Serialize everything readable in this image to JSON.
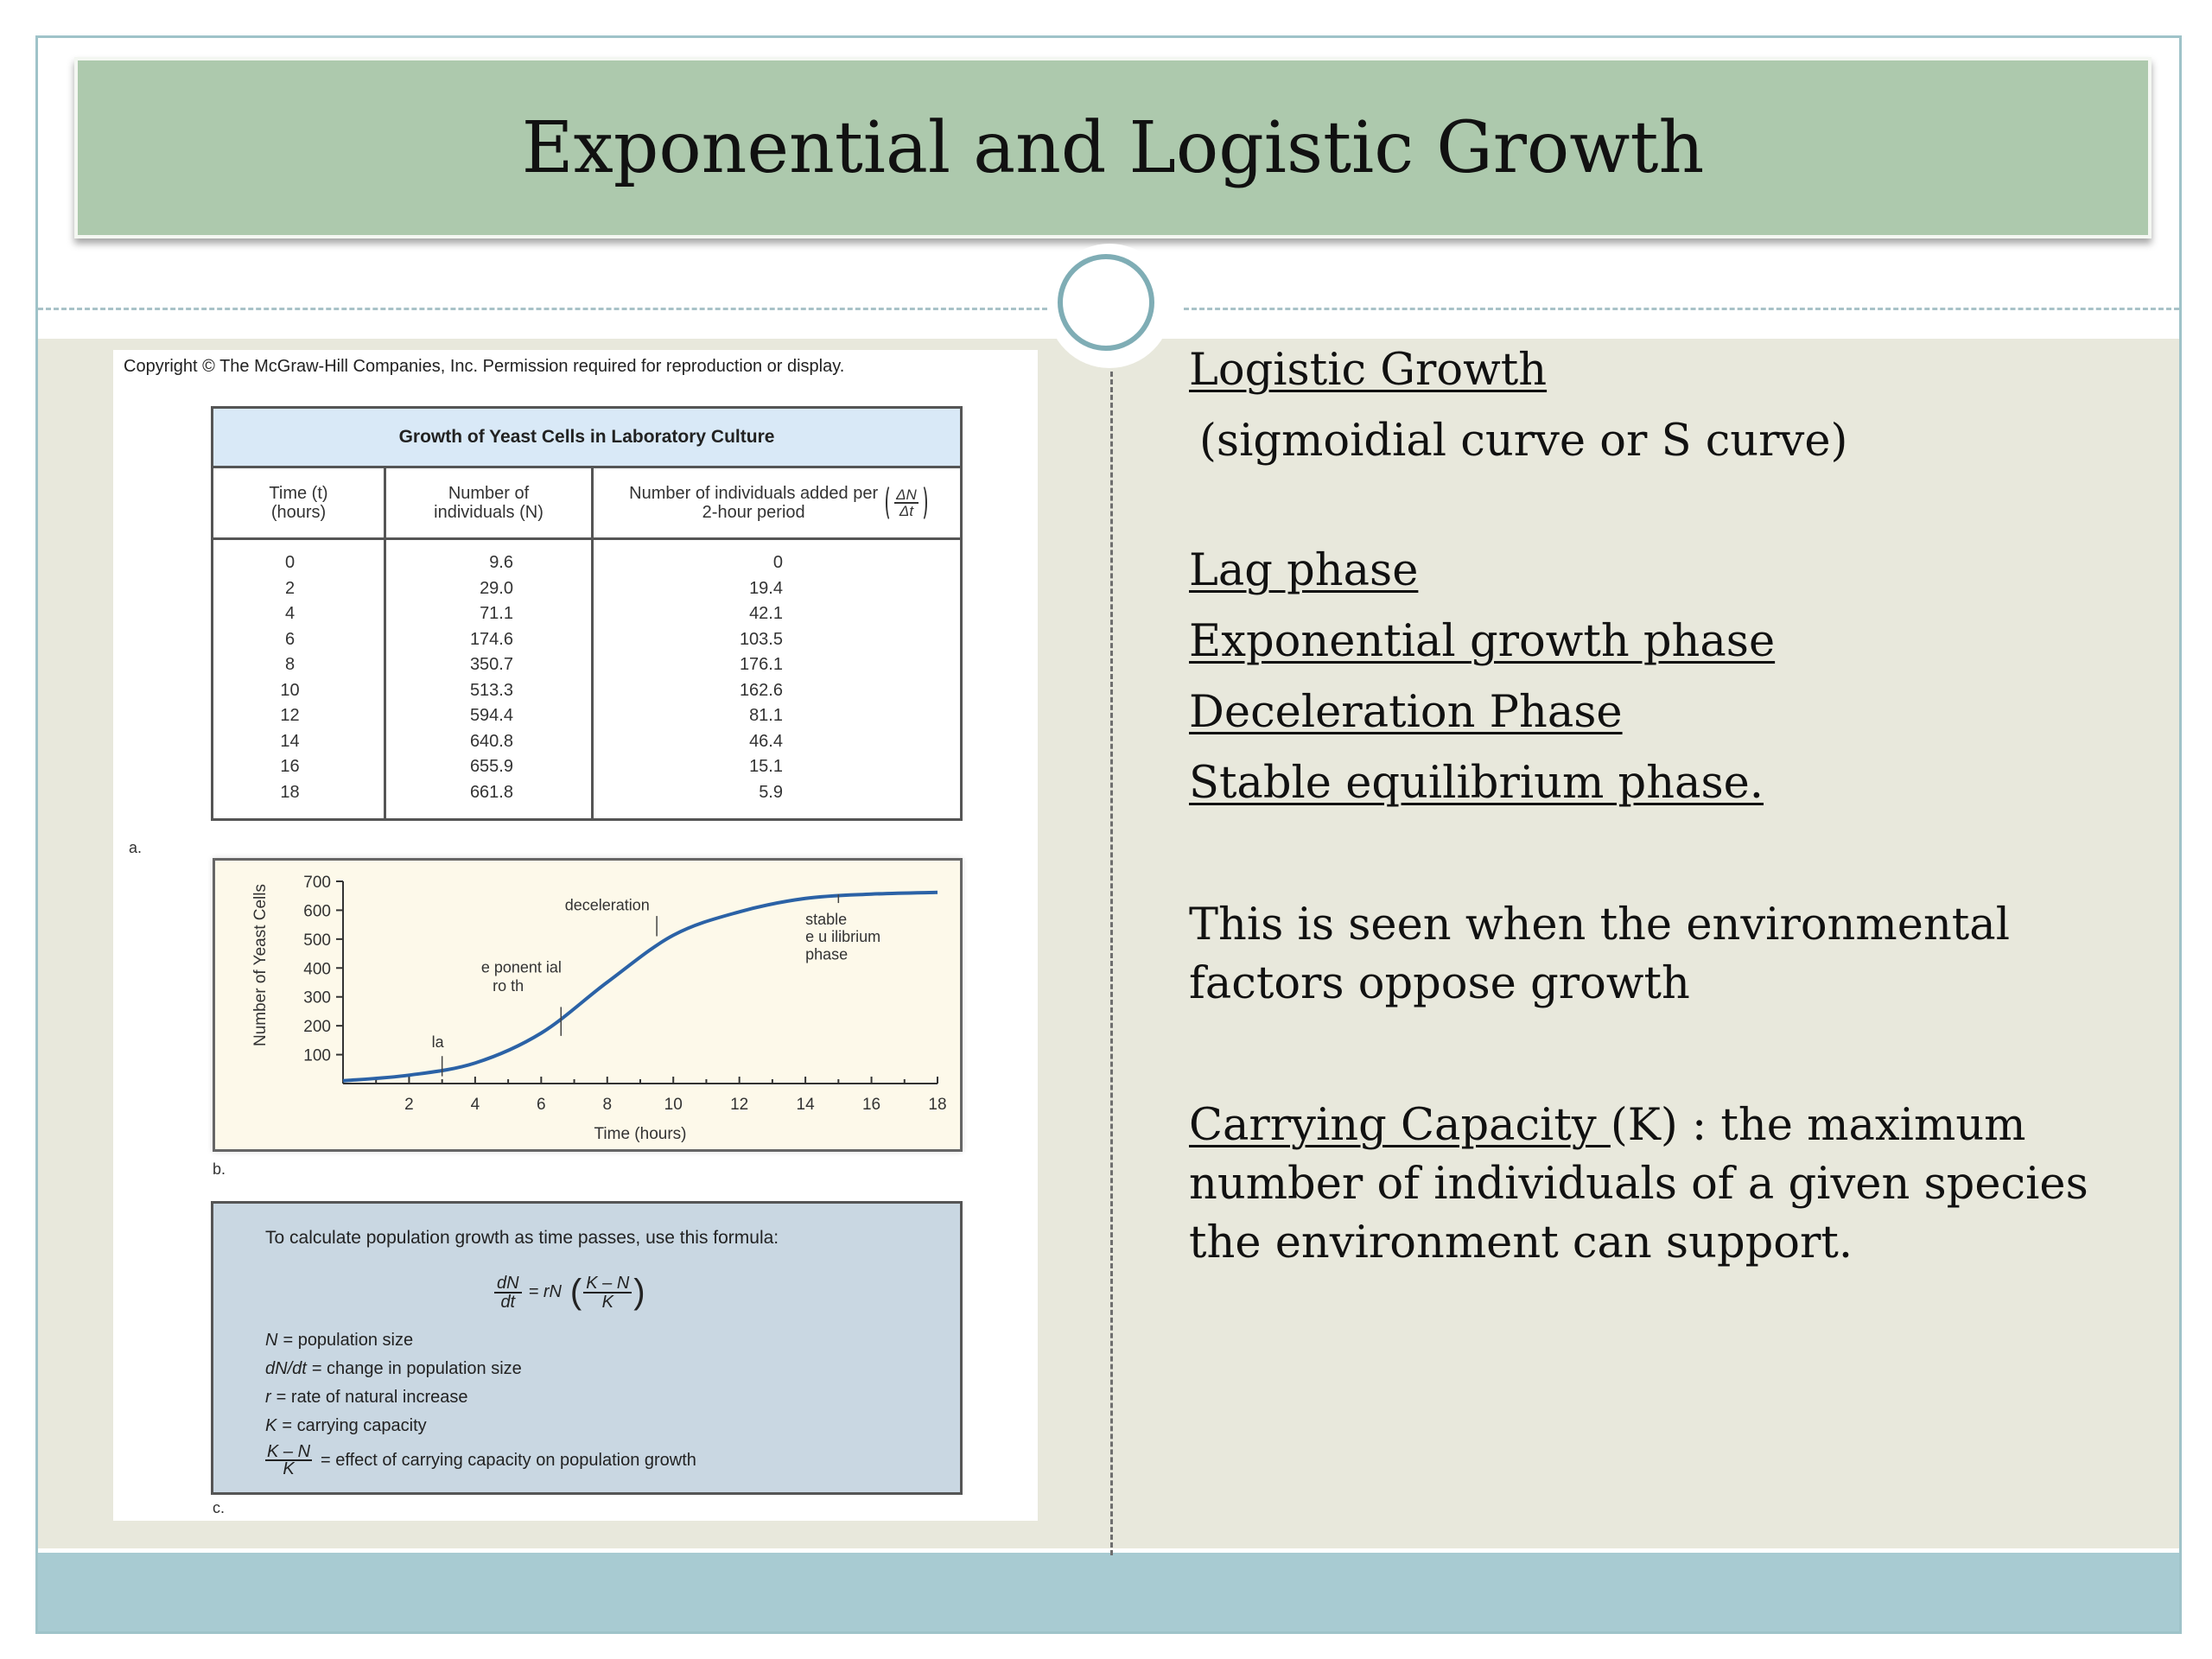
{
  "slide": {
    "title": "Exponential and Logistic Growth"
  },
  "figure": {
    "copyright": "Copyright © The McGraw-Hill Companies, Inc. Permission required for reproduction or display.",
    "label_a": "a.",
    "label_b": "b.",
    "label_c": "c.",
    "table": {
      "title": "Growth of Yeast Cells in Laboratory Culture",
      "headers": {
        "time": "Time (t) (hours)",
        "number": "Number of individuals (N)",
        "added": "Number of individuals added per 2-hour period",
        "delta_num": "ΔN",
        "delta_den": "Δt"
      },
      "rows": [
        {
          "time": "0",
          "number": "9.6",
          "added": "0"
        },
        {
          "time": "2",
          "number": "29.0",
          "added": "19.4"
        },
        {
          "time": "4",
          "number": "71.1",
          "added": "42.1"
        },
        {
          "time": "6",
          "number": "174.6",
          "added": "103.5"
        },
        {
          "time": "8",
          "number": "350.7",
          "added": "176.1"
        },
        {
          "time": "10",
          "number": "513.3",
          "added": "162.6"
        },
        {
          "time": "12",
          "number": "594.4",
          "added": "81.1"
        },
        {
          "time": "14",
          "number": "640.8",
          "added": "46.4"
        },
        {
          "time": "16",
          "number": "655.9",
          "added": "15.1"
        },
        {
          "time": "18",
          "number": "661.8",
          "added": "5.9"
        }
      ]
    },
    "formula": {
      "intro": "To calculate population growth as time passes, use this formula:",
      "lhs_num": "dN",
      "lhs_den": "dt",
      "equals": "= rN",
      "rhs_num": "K – N",
      "rhs_den": "K",
      "defs": [
        {
          "sym": "N",
          "text": "= population size"
        },
        {
          "sym": "dN/dt",
          "text": "= change in population size"
        },
        {
          "sym": "r",
          "text": "= rate of natural increase"
        },
        {
          "sym": "K",
          "text": "= carrying capacity"
        }
      ],
      "last_def_num": "K – N",
      "last_def_den": "K",
      "last_def_text": "= effect of carrying capacity on population growth"
    }
  },
  "chart_data": {
    "type": "line",
    "title": "",
    "xlabel": "Time (hours)",
    "ylabel": "Number of Yeast Cells",
    "xlim": [
      0,
      18
    ],
    "ylim": [
      0,
      700
    ],
    "xticks": [
      2,
      4,
      6,
      8,
      10,
      12,
      14,
      16,
      18
    ],
    "yticks": [
      100,
      200,
      300,
      400,
      500,
      600,
      700
    ],
    "grid": false,
    "series": [
      {
        "x": [
          0,
          2,
          4,
          6,
          8,
          10,
          12,
          14,
          16,
          18
        ],
        "y": [
          9.6,
          29.0,
          71.1,
          174.6,
          350.7,
          513.3,
          594.4,
          640.8,
          655.9,
          661.8
        ]
      }
    ],
    "annotations": [
      {
        "text": "la",
        "x": 2.8,
        "y": 85
      },
      {
        "text": "e ponent ial",
        "x": 6.6,
        "y": 240
      },
      {
        "text": "ro th",
        "x": 6.6,
        "y": 240
      },
      {
        "text": "deceleration",
        "x": 9.5,
        "y": 540
      },
      {
        "text": "stable",
        "x": 15.3,
        "y": 630
      },
      {
        "text": "e u ilibrium",
        "x": 15.3,
        "y": 630
      },
      {
        "text": "phase",
        "x": 15.3,
        "y": 630
      }
    ],
    "colors": {
      "line": "#2b62a6",
      "background": "#fdf9ea"
    }
  },
  "right": {
    "heading": "Logistic Growth",
    "subheading": "(sigmoidial curve or S curve)",
    "phases": [
      "Lag phase",
      "Exponential growth phase",
      "Deceleration Phase",
      "Stable equilibrium phase."
    ],
    "paragraph": "This is seen when the environmental factors oppose growth",
    "cc_term": "Carrying Capacity ",
    "cc_rest": "(K) : the maximum number of individuals of a given species the environment can support."
  }
}
